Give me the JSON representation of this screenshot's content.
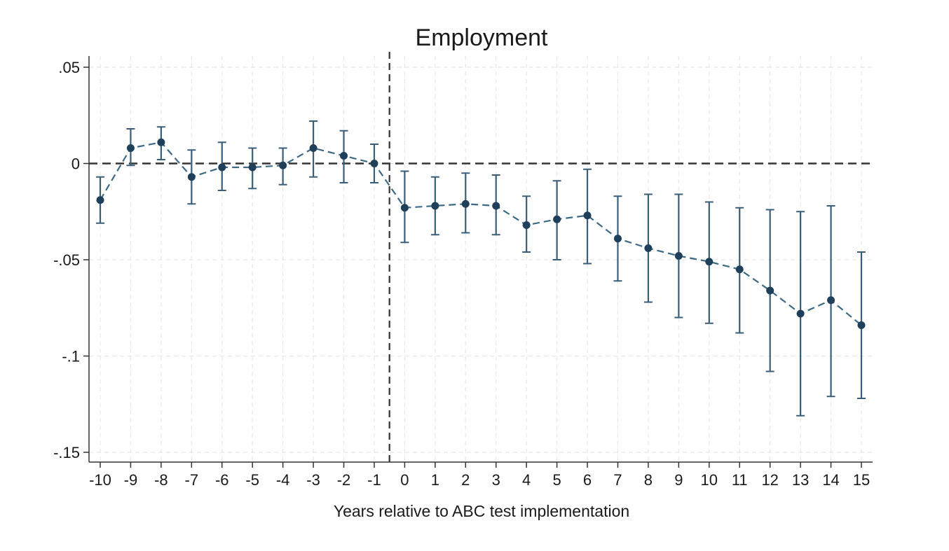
{
  "chart_data": {
    "type": "line",
    "title": "Employment",
    "xlabel": "Years relative to ABC test implementation",
    "ylabel": "",
    "xlim": [
      -10,
      15
    ],
    "ylim": [
      -0.15,
      0.05
    ],
    "grid": true,
    "legend": "none",
    "x_ticks": [
      {
        "value": -10,
        "label": "-10"
      },
      {
        "value": -9,
        "label": "-9"
      },
      {
        "value": -8,
        "label": "-8"
      },
      {
        "value": -7,
        "label": "-7"
      },
      {
        "value": -6,
        "label": "-6"
      },
      {
        "value": -5,
        "label": "-5"
      },
      {
        "value": -4,
        "label": "-4"
      },
      {
        "value": -3,
        "label": "-3"
      },
      {
        "value": -2,
        "label": "-2"
      },
      {
        "value": -1,
        "label": "-1"
      },
      {
        "value": 0,
        "label": "0"
      },
      {
        "value": 1,
        "label": "1"
      },
      {
        "value": 2,
        "label": "2"
      },
      {
        "value": 3,
        "label": "3"
      },
      {
        "value": 4,
        "label": "4"
      },
      {
        "value": 5,
        "label": "5"
      },
      {
        "value": 6,
        "label": "6"
      },
      {
        "value": 7,
        "label": "7"
      },
      {
        "value": 8,
        "label": "8"
      },
      {
        "value": 9,
        "label": "9"
      },
      {
        "value": 10,
        "label": "10"
      },
      {
        "value": 11,
        "label": "11"
      },
      {
        "value": 12,
        "label": "12"
      },
      {
        "value": 13,
        "label": "13"
      },
      {
        "value": 14,
        "label": "14"
      },
      {
        "value": 15,
        "label": "15"
      }
    ],
    "y_ticks": [
      {
        "value": 0.05,
        "label": ".05"
      },
      {
        "value": 0,
        "label": "0"
      },
      {
        "value": -0.05,
        "label": "-.05"
      },
      {
        "value": -0.1,
        "label": "-.1"
      },
      {
        "value": -0.15,
        "label": "-.15"
      }
    ],
    "reference_lines": {
      "horizontal_y": 0,
      "vertical_x": -0.5
    },
    "colors": {
      "series": "#1f3f5a",
      "line": "#3d6a85",
      "errorbar": "#3b5e78",
      "grid": "#e8e8e8",
      "reference": "#333333",
      "axis": "#333333"
    },
    "series": [
      {
        "x": [
          -10,
          -9,
          -8,
          -7,
          -6,
          -5,
          -4,
          -3,
          -2,
          -1,
          0,
          1,
          2,
          3,
          4,
          5,
          6,
          7,
          8,
          9,
          10,
          11,
          12,
          13,
          14,
          15
        ],
        "values": [
          -0.019,
          0.008,
          0.011,
          -0.007,
          -0.002,
          -0.002,
          -0.001,
          0.008,
          0.004,
          0.0,
          -0.023,
          -0.022,
          -0.021,
          -0.022,
          -0.032,
          -0.029,
          -0.027,
          -0.039,
          -0.044,
          -0.048,
          -0.051,
          -0.055,
          -0.066,
          -0.078,
          -0.071,
          -0.084
        ],
        "ci_low": [
          -0.031,
          -0.001,
          0.002,
          -0.021,
          -0.014,
          -0.013,
          -0.011,
          -0.007,
          -0.01,
          -0.01,
          -0.041,
          -0.037,
          -0.036,
          -0.037,
          -0.046,
          -0.05,
          -0.052,
          -0.061,
          -0.072,
          -0.08,
          -0.083,
          -0.088,
          -0.108,
          -0.131,
          -0.121,
          -0.122
        ],
        "ci_high": [
          -0.007,
          0.018,
          0.019,
          0.007,
          0.011,
          0.008,
          0.008,
          0.022,
          0.017,
          0.01,
          -0.004,
          -0.007,
          -0.005,
          -0.006,
          -0.017,
          -0.009,
          -0.003,
          -0.017,
          -0.016,
          -0.016,
          -0.02,
          -0.023,
          -0.024,
          -0.025,
          -0.022,
          -0.046
        ]
      }
    ]
  }
}
